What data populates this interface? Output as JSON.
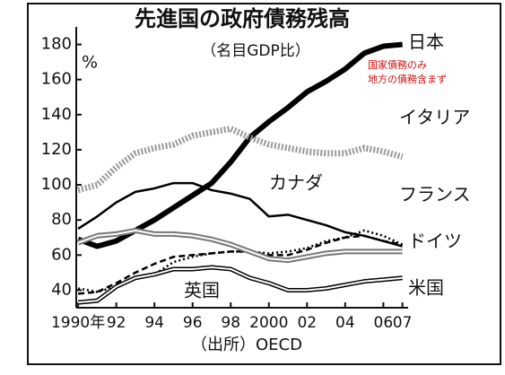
{
  "chart_data": {
    "type": "line",
    "title": "先進国の政府債務残高",
    "subtitle": "（名目GDP比）",
    "y_unit": "%",
    "source": "（出所）OECD",
    "annotations": [
      "国家債務のみ",
      "地方の債務含まず"
    ],
    "x": [
      1990,
      1991,
      1992,
      1993,
      1994,
      1995,
      1996,
      1997,
      1998,
      1999,
      2000,
      2001,
      2002,
      2003,
      2004,
      2005,
      2006,
      2007
    ],
    "xlim": [
      1989.9,
      2007.3
    ],
    "xticks": [
      {
        "value": 1990,
        "label": "1990年"
      },
      {
        "value": 1992,
        "label": "92"
      },
      {
        "value": 1994,
        "label": "94"
      },
      {
        "value": 1996,
        "label": "96"
      },
      {
        "value": 1998,
        "label": "98"
      },
      2000,
      {
        "value": 2002,
        "label": "02"
      },
      {
        "value": 2004,
        "label": "04"
      },
      {
        "value": 2006,
        "label": "06"
      },
      {
        "value": 2007,
        "label": "07"
      }
    ],
    "ylim": [
      30,
      190
    ],
    "yticks": [
      40,
      60,
      80,
      100,
      120,
      140,
      160,
      180
    ],
    "series": [
      {
        "name": "日本",
        "color": "#000000",
        "values": [
          69,
          65,
          68,
          74,
          80,
          87,
          94,
          101,
          113,
          127,
          136,
          144,
          153,
          159,
          166,
          175,
          179,
          180
        ]
      },
      {
        "name": "イタリア",
        "color": "#9a9a9a",
        "values": [
          97,
          100,
          110,
          118,
          121,
          123,
          128,
          130,
          132,
          127,
          123,
          121,
          119,
          118,
          118,
          121,
          119,
          116
        ]
      },
      {
        "name": "カナダ",
        "color": "#000000",
        "values": [
          75,
          82,
          90,
          96,
          98,
          101,
          101,
          97,
          95,
          92,
          82,
          83,
          80,
          77,
          73,
          71,
          68,
          65
        ]
      },
      {
        "name": "フランス",
        "color": "#000000",
        "values": [
          38,
          39,
          44,
          50,
          55,
          59,
          60,
          61,
          62,
          62,
          60,
          60,
          63,
          67,
          70,
          71,
          68,
          66
        ]
      },
      {
        "name": "ドイツ",
        "color": "#000000",
        "values": [
          41,
          39,
          42,
          47,
          49,
          56,
          59,
          61,
          62,
          62,
          61,
          62,
          64,
          68,
          70,
          74,
          71,
          66
        ]
      },
      {
        "name": "英国",
        "color": "#000000",
        "values": [
          33,
          34,
          42,
          47,
          49,
          52,
          52,
          53,
          52,
          47,
          44,
          40,
          40,
          41,
          43,
          45,
          46,
          47
        ]
      },
      {
        "name": "米国",
        "color": "#777777",
        "values": [
          67,
          71,
          72,
          74,
          72,
          72,
          71,
          69,
          66,
          62,
          58,
          57,
          59,
          61,
          62,
          62,
          62,
          62
        ]
      }
    ]
  }
}
